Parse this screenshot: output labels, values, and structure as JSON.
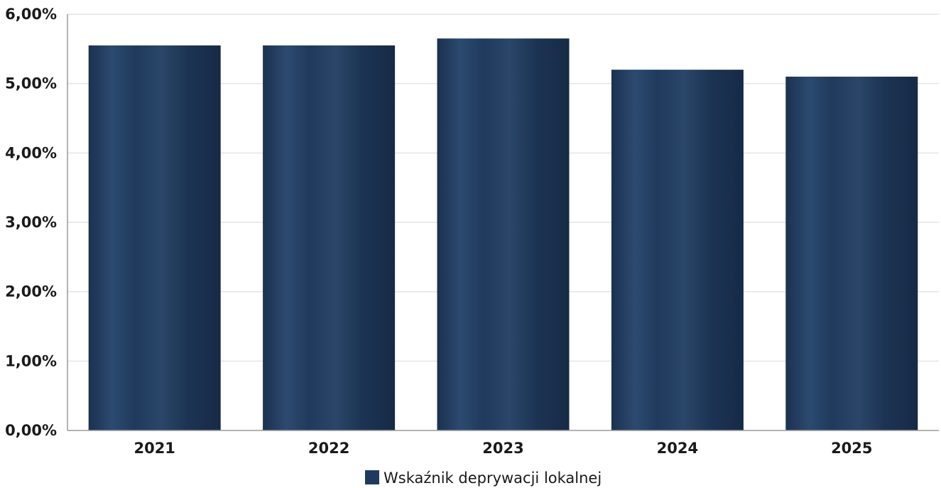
{
  "chart_data": {
    "type": "bar",
    "categories": [
      "2021",
      "2022",
      "2023",
      "2024",
      "2025"
    ],
    "series": [
      {
        "name": "Wskaźnik deprywacji lokalnej",
        "values": [
          5.55,
          5.55,
          5.65,
          5.2,
          5.1
        ],
        "color": "#1f3a5c"
      }
    ],
    "yticks": [
      "0,00%",
      "1,00%",
      "2,00%",
      "3,00%",
      "4,00%",
      "5,00%",
      "6,00%"
    ],
    "ylim": [
      0,
      6
    ],
    "grid": true,
    "legend_position": "bottom"
  }
}
